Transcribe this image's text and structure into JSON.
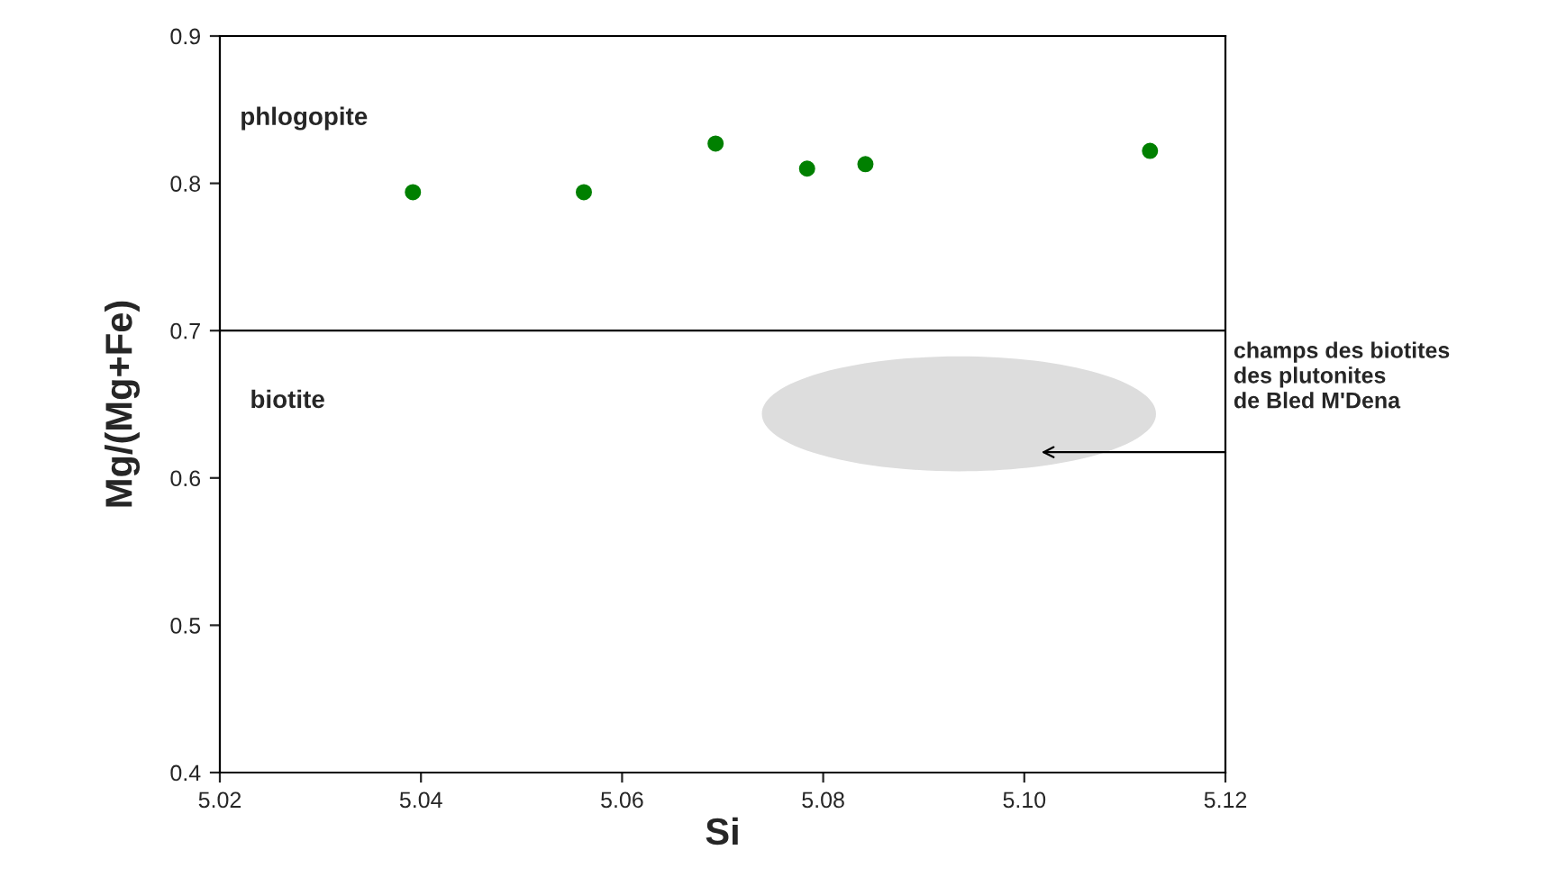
{
  "chart_data": {
    "type": "scatter",
    "xlabel": "Si",
    "ylabel": "Mg/(Mg+Fe)",
    "x": [
      5.0392,
      5.0562,
      5.0693,
      5.0784,
      5.0842,
      5.1125
    ],
    "series": [
      {
        "color": "#008000",
        "values": [
          0.794,
          0.794,
          0.827,
          0.81,
          0.813,
          0.822
        ]
      }
    ],
    "xlim": [
      5.02,
      5.12
    ],
    "xticks": [
      {
        "value": 5.02,
        "label": "5.02"
      },
      {
        "value": 5.04,
        "label": "5.04"
      },
      {
        "value": 5.06,
        "label": "5.06"
      },
      {
        "value": 5.08,
        "label": "5.08"
      },
      {
        "value": 5.1,
        "label": "5.10"
      },
      {
        "value": 5.12,
        "label": "5.12"
      }
    ],
    "ylim": [
      0.4,
      0.9
    ],
    "yticks": [
      0.4,
      0.5,
      0.6,
      0.7,
      0.8,
      0.9
    ],
    "ref_lines": [
      {
        "axis": "y",
        "value": 0.7,
        "color": "#000000"
      }
    ],
    "annotations": [
      "phlogopite",
      "biotite",
      "champs des biotites\ndes plutonites\nde Bled M'Dena"
    ],
    "marker": "circle",
    "grid": false,
    "legend": false
  }
}
